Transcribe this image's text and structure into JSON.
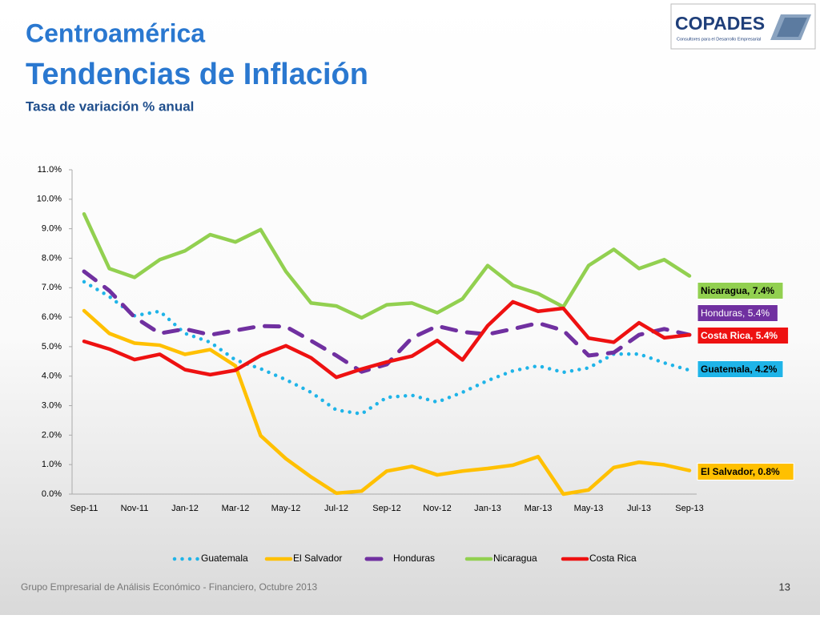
{
  "header": {
    "title": "Centroamérica",
    "subtitle": "Tendencias de Inflación",
    "caption": "Tasa de variación % anual"
  },
  "logo": {
    "name": "COPADES",
    "tagline": "Consultores para el Desarrollo Empresarial"
  },
  "footer": {
    "text": "Grupo Empresarial de Análisis Económico - Financiero, Octubre 2013",
    "page": "13"
  },
  "chart_data": {
    "type": "line",
    "categories": [
      "Sep-11",
      null,
      "Nov-11",
      null,
      "Jan-12",
      null,
      "Mar-12",
      null,
      "May-12",
      null,
      "Jul-12",
      null,
      "Sep-12",
      null,
      "Nov-12",
      null,
      "Jan-13",
      null,
      "Mar-13",
      null,
      "May-13",
      null,
      "Jul-13",
      null,
      "Sep-13"
    ],
    "ylim": [
      0,
      11
    ],
    "yticks": [
      {
        "value": 0,
        "label": "0.0%"
      },
      {
        "value": 1,
        "label": "1.0%"
      },
      {
        "value": 2,
        "label": "2.0%"
      },
      {
        "value": 3,
        "label": "3.0%"
      },
      {
        "value": 4,
        "label": "4.0%"
      },
      {
        "value": 5,
        "label": "5.0%"
      },
      {
        "value": 6,
        "label": "6.0%"
      },
      {
        "value": 7,
        "label": "7.0%"
      },
      {
        "value": 8,
        "label": "8.0%"
      },
      {
        "value": 9,
        "label": "9.0%"
      },
      {
        "value": 10,
        "label": "10.0%"
      },
      {
        "value": 11,
        "label": "11.0%"
      }
    ],
    "legend": "bottom",
    "series": [
      {
        "name": "Guatemala",
        "color": "#1fb4e8",
        "dash": "dotted",
        "end_label": "Guatemala, 4.2%",
        "values": [
          7.2,
          6.7,
          6.05,
          6.2,
          5.45,
          5.15,
          4.55,
          4.25,
          3.88,
          3.45,
          2.85,
          2.72,
          3.28,
          3.35,
          3.12,
          3.45,
          3.85,
          4.18,
          4.35,
          4.13,
          4.28,
          4.75,
          4.75,
          4.45,
          4.2
        ]
      },
      {
        "name": "El Salvador",
        "color": "#ffc000",
        "dash": "solid",
        "end_label": "El Salvador, 0.8%",
        "values": [
          6.22,
          5.45,
          5.12,
          5.05,
          4.74,
          4.9,
          4.35,
          1.98,
          1.2,
          0.58,
          0.03,
          0.1,
          0.78,
          0.94,
          0.65,
          0.78,
          0.87,
          0.98,
          1.27,
          0.0,
          0.14,
          0.9,
          1.08,
          0.99,
          0.8
        ]
      },
      {
        "name": "Honduras",
        "color": "#7030a0",
        "dash": "dashed",
        "end_label": "Honduras, 5.4%",
        "values": [
          7.55,
          6.9,
          6.0,
          5.45,
          5.6,
          5.4,
          5.55,
          5.7,
          5.68,
          5.2,
          4.7,
          4.15,
          4.4,
          5.3,
          5.7,
          5.5,
          5.42,
          5.6,
          5.8,
          5.55,
          4.7,
          4.8,
          5.4,
          5.6,
          5.4
        ]
      },
      {
        "name": "Nicaragua",
        "color": "#92d050",
        "dash": "solid",
        "end_label": "Nicaragua, 7.4%",
        "values": [
          9.5,
          7.65,
          7.35,
          7.95,
          8.25,
          8.8,
          8.55,
          8.97,
          7.55,
          6.48,
          6.38,
          5.98,
          6.42,
          6.48,
          6.15,
          6.62,
          7.75,
          7.08,
          6.8,
          6.35,
          7.75,
          8.3,
          7.65,
          7.95,
          7.4
        ]
      },
      {
        "name": "Costa Rica",
        "color": "#ee1111",
        "dash": "solid",
        "end_label": "Costa Rica, 5.4%",
        "values": [
          5.18,
          4.92,
          4.56,
          4.74,
          4.22,
          4.05,
          4.2,
          4.7,
          5.03,
          4.62,
          3.96,
          4.24,
          4.48,
          4.68,
          5.21,
          4.55,
          5.71,
          6.52,
          6.2,
          6.3,
          5.29,
          5.15,
          5.81,
          5.3,
          5.4
        ]
      }
    ]
  }
}
